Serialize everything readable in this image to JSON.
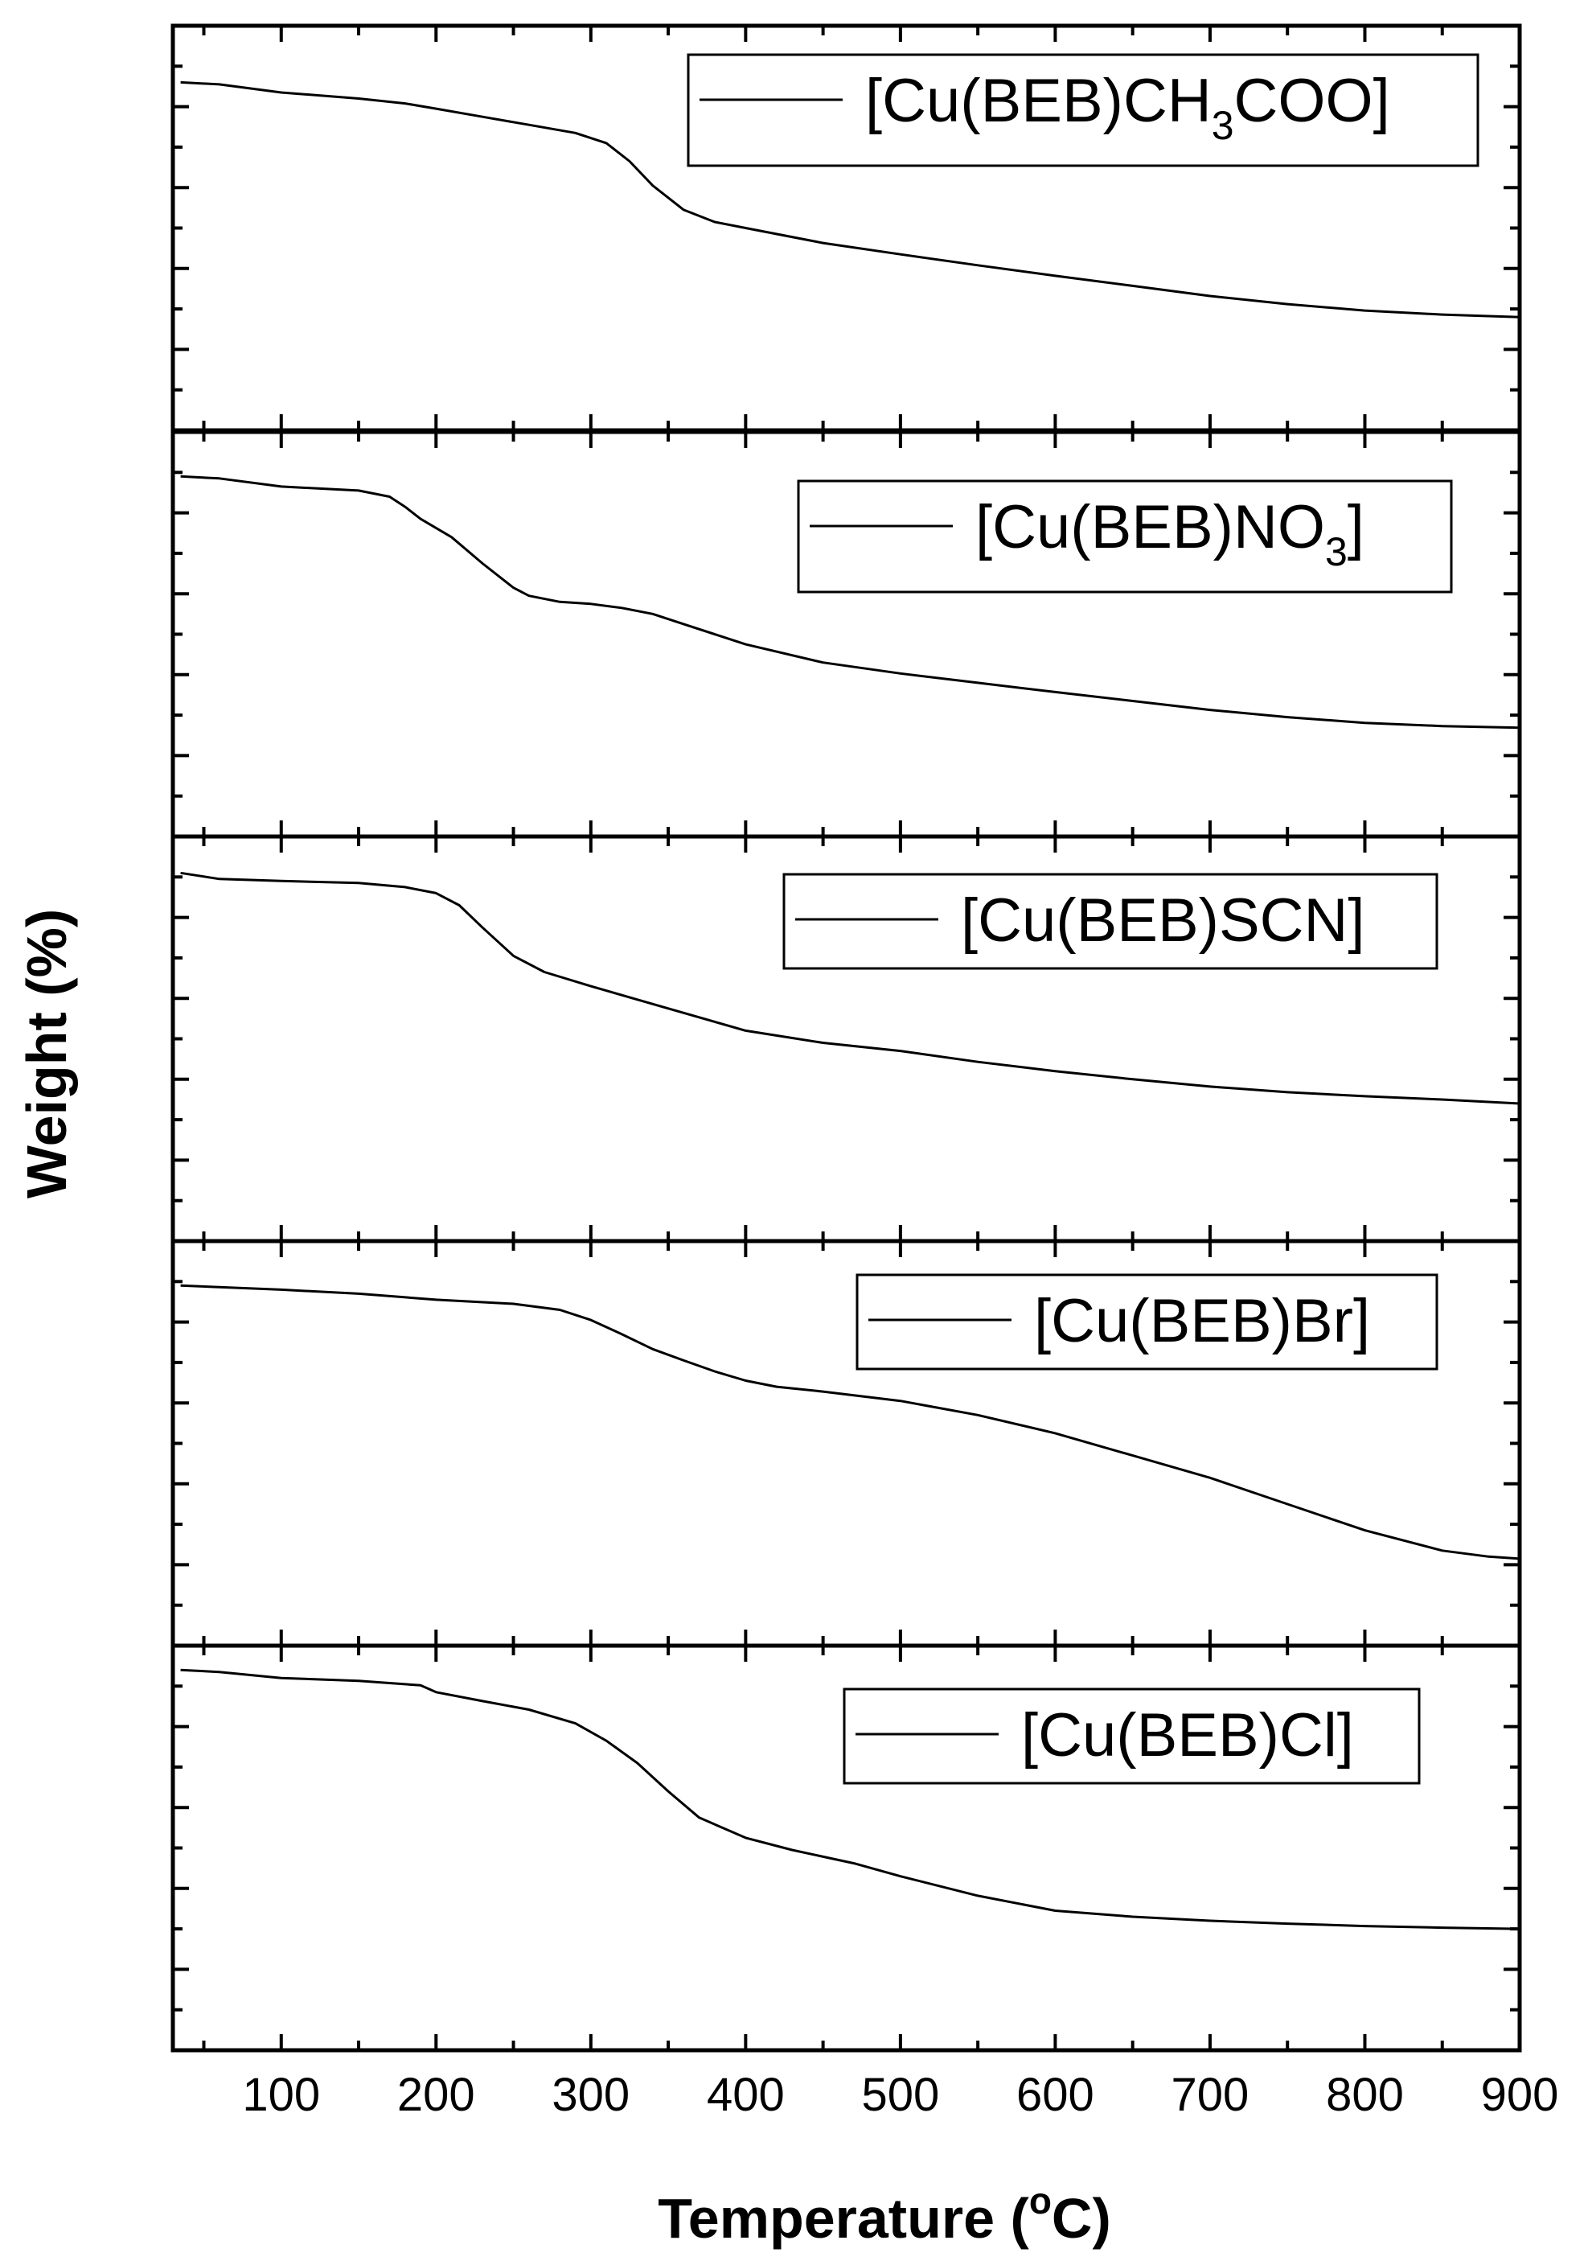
{
  "chart_data": {
    "type": "line",
    "layout": "stacked panels sharing one x-axis",
    "xlabel": "Temperature (°C)",
    "xlabel_parts": {
      "pre": "Temperature (",
      "sup": "o",
      "post": "C)"
    },
    "ylabel": "Weight (%)",
    "xlim": [
      30,
      900
    ],
    "xticks": [
      100,
      200,
      300,
      400,
      500,
      600,
      700,
      800,
      900
    ],
    "x_minor_step": 50,
    "y_tick_labels_shown": false,
    "ylim": [
      0,
      100
    ],
    "y_major_ticks": [
      20,
      40,
      60,
      80
    ],
    "y_minor_ticks": [
      10,
      30,
      50,
      70,
      90
    ],
    "line_color": "#000000",
    "panels": [
      {
        "legend": {
          "pre": "[Cu(BEB)CH",
          "sub": "3",
          "post": "COO]"
        },
        "series": {
          "x": [
            35,
            60,
            100,
            150,
            180,
            200,
            230,
            260,
            290,
            310,
            325,
            340,
            360,
            380,
            400,
            450,
            500,
            550,
            600,
            650,
            700,
            750,
            800,
            850,
            900
          ],
          "y": [
            86,
            85.5,
            83.5,
            82,
            80.8,
            79.5,
            77.5,
            75.5,
            73.5,
            71,
            66.5,
            60.5,
            54.5,
            51.5,
            50,
            46.3,
            43.5,
            40.8,
            38.2,
            35.7,
            33.2,
            31.2,
            29.6,
            28.6,
            28
          ]
        }
      },
      {
        "legend": {
          "pre": "[Cu(BEB)NO",
          "sub": "3",
          "post": "]"
        },
        "series": {
          "x": [
            35,
            60,
            100,
            150,
            170,
            180,
            190,
            210,
            230,
            250,
            260,
            280,
            300,
            320,
            340,
            360,
            400,
            450,
            500,
            550,
            600,
            650,
            700,
            750,
            800,
            850,
            900
          ],
          "y": [
            89,
            88.5,
            86.5,
            85.5,
            84,
            81.5,
            78.5,
            74,
            67.5,
            61.5,
            59.5,
            58,
            57.5,
            56.5,
            55,
            52.5,
            47.5,
            43,
            40.3,
            38,
            35.7,
            33.5,
            31.3,
            29.5,
            28.1,
            27.3,
            26.9
          ]
        }
      },
      {
        "legend": {
          "pre": "[Cu(BEB)SCN]",
          "sub": "",
          "post": ""
        },
        "series": {
          "x": [
            35,
            60,
            100,
            150,
            180,
            200,
            215,
            230,
            250,
            270,
            300,
            350,
            400,
            450,
            500,
            550,
            600,
            650,
            700,
            750,
            800,
            850,
            900
          ],
          "y": [
            91,
            89.5,
            89,
            88.5,
            87.5,
            86,
            83,
            77.5,
            70.5,
            66.5,
            63,
            57.5,
            52,
            49,
            47,
            44.3,
            42,
            40,
            38.2,
            36.8,
            35.8,
            35,
            34
          ]
        }
      },
      {
        "legend": {
          "pre": "[Cu(BEB)Br]",
          "sub": "",
          "post": ""
        },
        "series": {
          "x": [
            35,
            100,
            150,
            200,
            250,
            280,
            300,
            320,
            340,
            360,
            380,
            400,
            420,
            450,
            500,
            550,
            600,
            650,
            700,
            750,
            800,
            850,
            880,
            900
          ],
          "y": [
            89,
            88,
            87,
            85.5,
            84.5,
            83,
            80.5,
            77,
            73.3,
            70.5,
            67.8,
            65.5,
            64,
            62.8,
            60.5,
            57,
            52.5,
            47,
            41.5,
            35,
            28.5,
            23.5,
            22,
            21.5
          ]
        }
      },
      {
        "legend": {
          "pre": "[Cu(BEB)Cl]",
          "sub": "",
          "post": ""
        },
        "series": {
          "x": [
            35,
            60,
            100,
            150,
            190,
            200,
            230,
            260,
            290,
            310,
            330,
            350,
            370,
            400,
            430,
            470,
            500,
            550,
            600,
            650,
            700,
            750,
            800,
            850,
            900
          ],
          "y": [
            94,
            93.5,
            92,
            91.3,
            90.2,
            88.5,
            86.3,
            84.2,
            80.8,
            76.5,
            71,
            64,
            57.5,
            52.5,
            49.5,
            46.2,
            43,
            38.2,
            34.5,
            33,
            32,
            31.3,
            30.7,
            30.3,
            30
          ]
        }
      }
    ]
  }
}
